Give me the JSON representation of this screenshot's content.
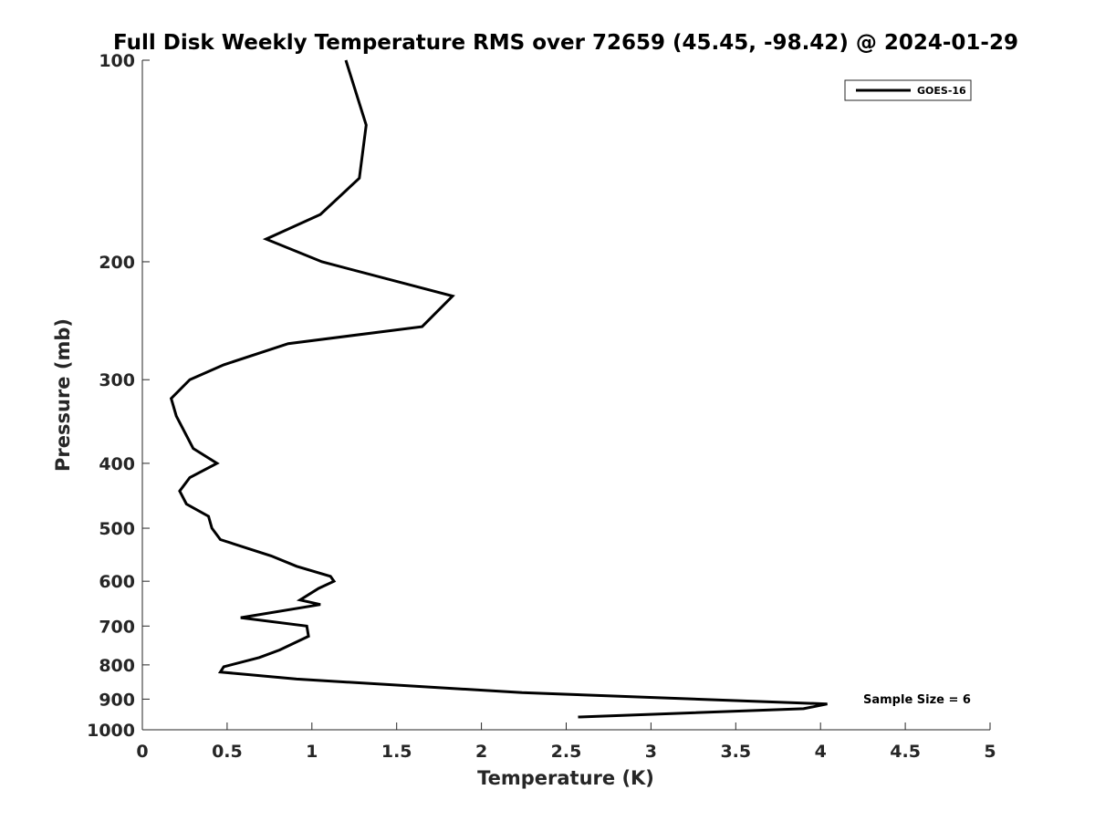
{
  "chart_data": {
    "type": "line",
    "title": "Full Disk Weekly Temperature RMS over 72659 (45.45, -98.42) @ 2024-01-29",
    "xlabel": "Temperature (K)",
    "ylabel": "Pressure (mb)",
    "xlim": [
      0,
      5
    ],
    "ylim": [
      1000,
      100
    ],
    "yscale": "log",
    "xticks": [
      0,
      0.5,
      1,
      1.5,
      2,
      2.5,
      3,
      3.5,
      4,
      4.5,
      5
    ],
    "xtick_labels": [
      "0",
      "0.5",
      "1",
      "1.5",
      "2",
      "2.5",
      "3",
      "3.5",
      "4",
      "4.5",
      "5"
    ],
    "yticks": [
      100,
      200,
      300,
      400,
      500,
      600,
      700,
      800,
      900,
      1000
    ],
    "ytick_labels": [
      "100",
      "200",
      "300",
      "400",
      "500",
      "600",
      "700",
      "800",
      "900",
      "1000"
    ],
    "grid": false,
    "legend_position": "top-right",
    "annotation": "Sample Size = 6",
    "series": [
      {
        "name": "GOES-16",
        "color": "#000000",
        "points": [
          [
            1.2,
            100
          ],
          [
            1.32,
            125
          ],
          [
            1.28,
            150
          ],
          [
            1.05,
            170
          ],
          [
            0.73,
            185
          ],
          [
            1.06,
            200
          ],
          [
            1.83,
            225
          ],
          [
            1.65,
            250
          ],
          [
            0.86,
            265
          ],
          [
            0.48,
            285
          ],
          [
            0.28,
            300
          ],
          [
            0.17,
            320
          ],
          [
            0.2,
            340
          ],
          [
            0.3,
            380
          ],
          [
            0.44,
            400
          ],
          [
            0.28,
            420
          ],
          [
            0.22,
            440
          ],
          [
            0.26,
            460
          ],
          [
            0.39,
            480
          ],
          [
            0.41,
            500
          ],
          [
            0.46,
            520
          ],
          [
            0.76,
            550
          ],
          [
            0.91,
            570
          ],
          [
            1.11,
            590
          ],
          [
            1.13,
            600
          ],
          [
            1.04,
            615
          ],
          [
            0.93,
            640
          ],
          [
            1.05,
            650
          ],
          [
            0.58,
            680
          ],
          [
            0.97,
            700
          ],
          [
            0.98,
            725
          ],
          [
            0.81,
            760
          ],
          [
            0.69,
            780
          ],
          [
            0.48,
            805
          ],
          [
            0.46,
            820
          ],
          [
            0.91,
            840
          ],
          [
            2.24,
            880
          ],
          [
            4.04,
            915
          ],
          [
            3.9,
            930
          ],
          [
            2.57,
            957
          ]
        ]
      }
    ]
  }
}
